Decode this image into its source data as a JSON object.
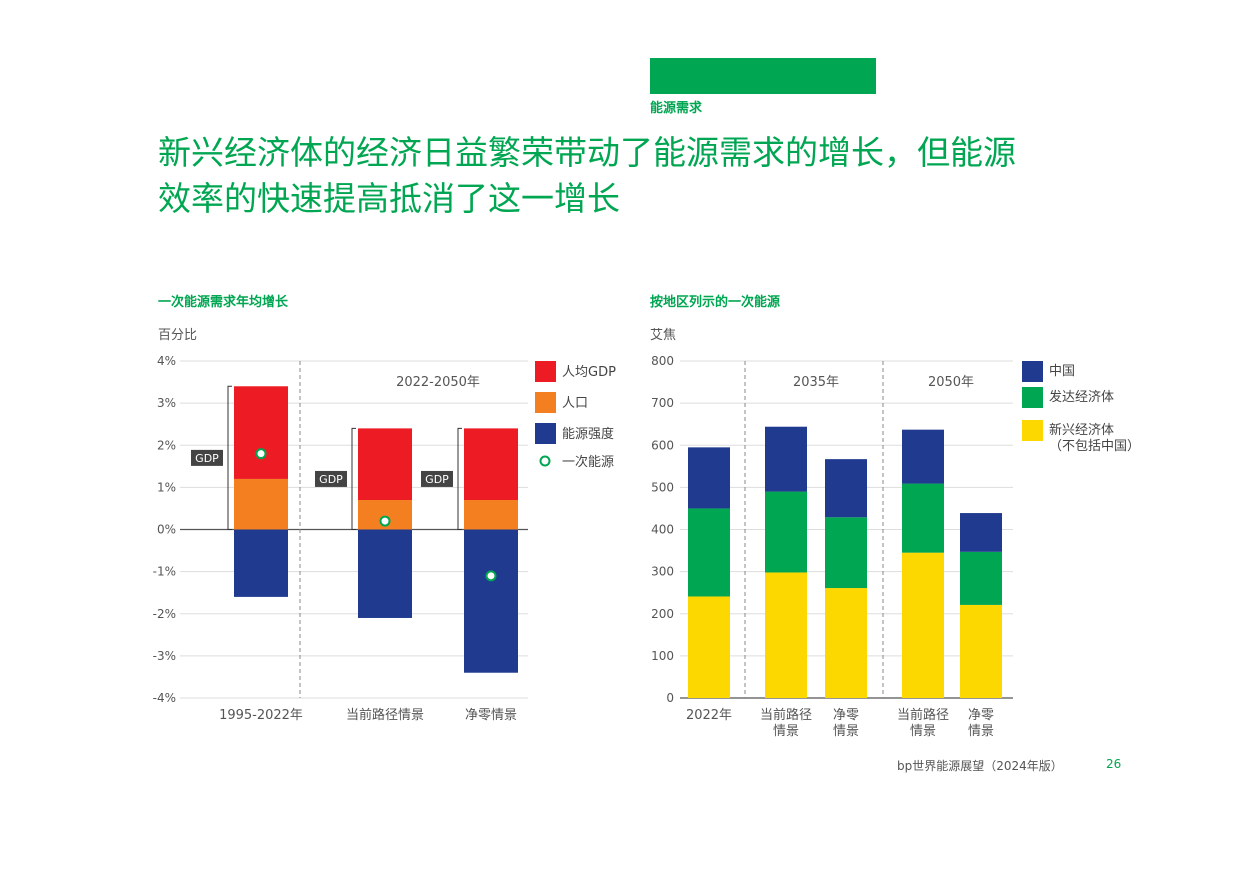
{
  "header": {
    "section": "能源需求",
    "title_line1": "新兴经济体的经济日益繁荣带动了能源需求的增长，但能源",
    "title_line2": "效率的快速提高抵消了这一增长"
  },
  "left_chart": {
    "title": "一次能源需求年均增长",
    "unit": "百分比"
  },
  "right_chart": {
    "title": "按地区列示的一次能源",
    "unit": "艾焦"
  },
  "footer": {
    "text": "bp世界能源展望（2024年版）",
    "page": "26"
  },
  "colors": {
    "red": "#ed1c24",
    "orange": "#f47f20",
    "navy": "#1f3a8f",
    "green": "#00a651",
    "yellow": "#fcd800",
    "brand": "#00a651"
  },
  "chart_data": [
    {
      "type": "bar",
      "title": "一次能源需求年均增长",
      "ylabel": "百分比",
      "ylim": [
        -4,
        4
      ],
      "yticks": [
        "4%",
        "3%",
        "2%",
        "1%",
        "0%",
        "-1%",
        "-2%",
        "-3%",
        "-4%"
      ],
      "categories": [
        "1995-2022年",
        "当前路径情景",
        "净零情景"
      ],
      "period_label": "2022-2050年",
      "gdp_bracket_label": "GDP",
      "series": [
        {
          "name": "人均GDP",
          "values": [
            2.2,
            1.7,
            1.7
          ]
        },
        {
          "name": "人口",
          "values": [
            1.2,
            0.7,
            0.7
          ]
        },
        {
          "name": "能源强度",
          "values": [
            -1.6,
            -2.1,
            -3.4
          ]
        },
        {
          "name": "一次能源",
          "values": [
            1.8,
            0.2,
            -1.1
          ],
          "marker": "circle"
        }
      ],
      "legend_position": "right"
    },
    {
      "type": "bar",
      "title": "按地区列示的一次能源",
      "ylabel": "艾焦",
      "ylim": [
        0,
        800
      ],
      "yticks": [
        "800",
        "700",
        "600",
        "500",
        "400",
        "300",
        "200",
        "100",
        "0"
      ],
      "groups": [
        "2035年",
        "2050年"
      ],
      "categories": [
        {
          "label": [
            "2022年"
          ]
        },
        {
          "label": [
            "当前路径",
            "情景"
          ]
        },
        {
          "label": [
            "净零",
            "情景"
          ]
        },
        {
          "label": [
            "当前路径",
            "情景"
          ]
        },
        {
          "label": [
            "净零",
            "情景"
          ]
        }
      ],
      "series": [
        {
          "name": "新兴经济体（不包括中国）",
          "values": [
            241,
            298,
            261,
            345,
            221
          ]
        },
        {
          "name": "发达经济体",
          "values": [
            209,
            192,
            168,
            164,
            126
          ]
        },
        {
          "name": "中国",
          "values": [
            145,
            154,
            138,
            128,
            92
          ]
        }
      ],
      "legend": [
        {
          "name": "中国",
          "lines": [
            "中国"
          ]
        },
        {
          "name": "发达经济体",
          "lines": [
            "发达经济体"
          ]
        },
        {
          "name": "新兴经济体",
          "lines": [
            "新兴经济体",
            "（不包括中国）"
          ]
        }
      ],
      "legend_position": "right"
    }
  ]
}
